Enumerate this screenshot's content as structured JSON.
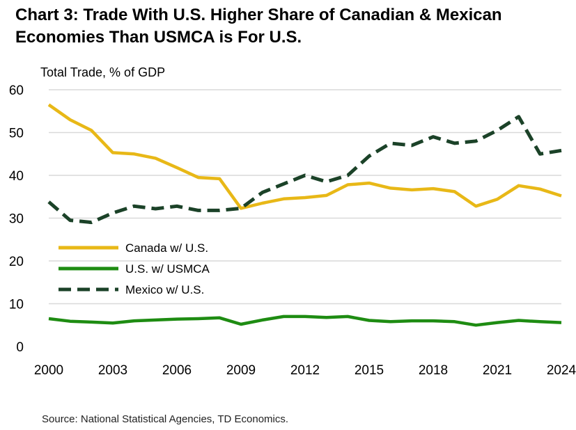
{
  "chart_data": {
    "type": "line",
    "title": "Chart 3: Trade With U.S. Higher Share of Canadian & Mexican Economies Than USMCA is For U.S.",
    "ylabel": "Total Trade, % of GDP",
    "xlabel": "",
    "ylim": [
      0,
      60
    ],
    "yticks": [
      0,
      10,
      20,
      30,
      40,
      50,
      60
    ],
    "xlim": [
      2000,
      2024
    ],
    "xticks": [
      2000,
      2003,
      2006,
      2009,
      2012,
      2015,
      2018,
      2021,
      2024
    ],
    "grid": true,
    "legend_position": "left",
    "x": [
      2000,
      2001,
      2002,
      2003,
      2004,
      2005,
      2006,
      2007,
      2008,
      2009,
      2010,
      2011,
      2012,
      2013,
      2014,
      2015,
      2016,
      2017,
      2018,
      2019,
      2020,
      2021,
      2022,
      2023,
      2024
    ],
    "series": [
      {
        "name": "Canada w/ U.S.",
        "color": "#E8B817",
        "style": "solid",
        "values": [
          56.5,
          53.0,
          50.5,
          45.3,
          45.0,
          44.0,
          41.8,
          39.5,
          39.2,
          32.3,
          33.5,
          34.5,
          34.8,
          35.3,
          37.8,
          38.2,
          37.0,
          36.6,
          36.9,
          36.2,
          32.8,
          34.4,
          37.6,
          36.8,
          35.2
        ]
      },
      {
        "name": "U.S. w/ USMCA",
        "color": "#1E8C12",
        "style": "solid",
        "values": [
          6.5,
          5.9,
          5.7,
          5.5,
          6.0,
          6.2,
          6.4,
          6.5,
          6.7,
          5.2,
          6.2,
          7.0,
          7.0,
          6.8,
          7.0,
          6.1,
          5.8,
          6.0,
          6.0,
          5.8,
          5.0,
          5.6,
          6.1,
          5.8,
          5.6
        ]
      },
      {
        "name": "Mexico w/ U.S.",
        "color": "#1B4228",
        "style": "dashed",
        "values": [
          33.8,
          29.5,
          29.0,
          31.2,
          32.8,
          32.2,
          32.8,
          31.8,
          31.8,
          32.3,
          36.0,
          38.0,
          40.0,
          38.5,
          40.0,
          44.5,
          47.5,
          47.0,
          49.0,
          47.5,
          48.0,
          50.5,
          53.7,
          45.0,
          45.8
        ]
      }
    ]
  },
  "source": "Source: National Statistical Agencies, TD Economics."
}
